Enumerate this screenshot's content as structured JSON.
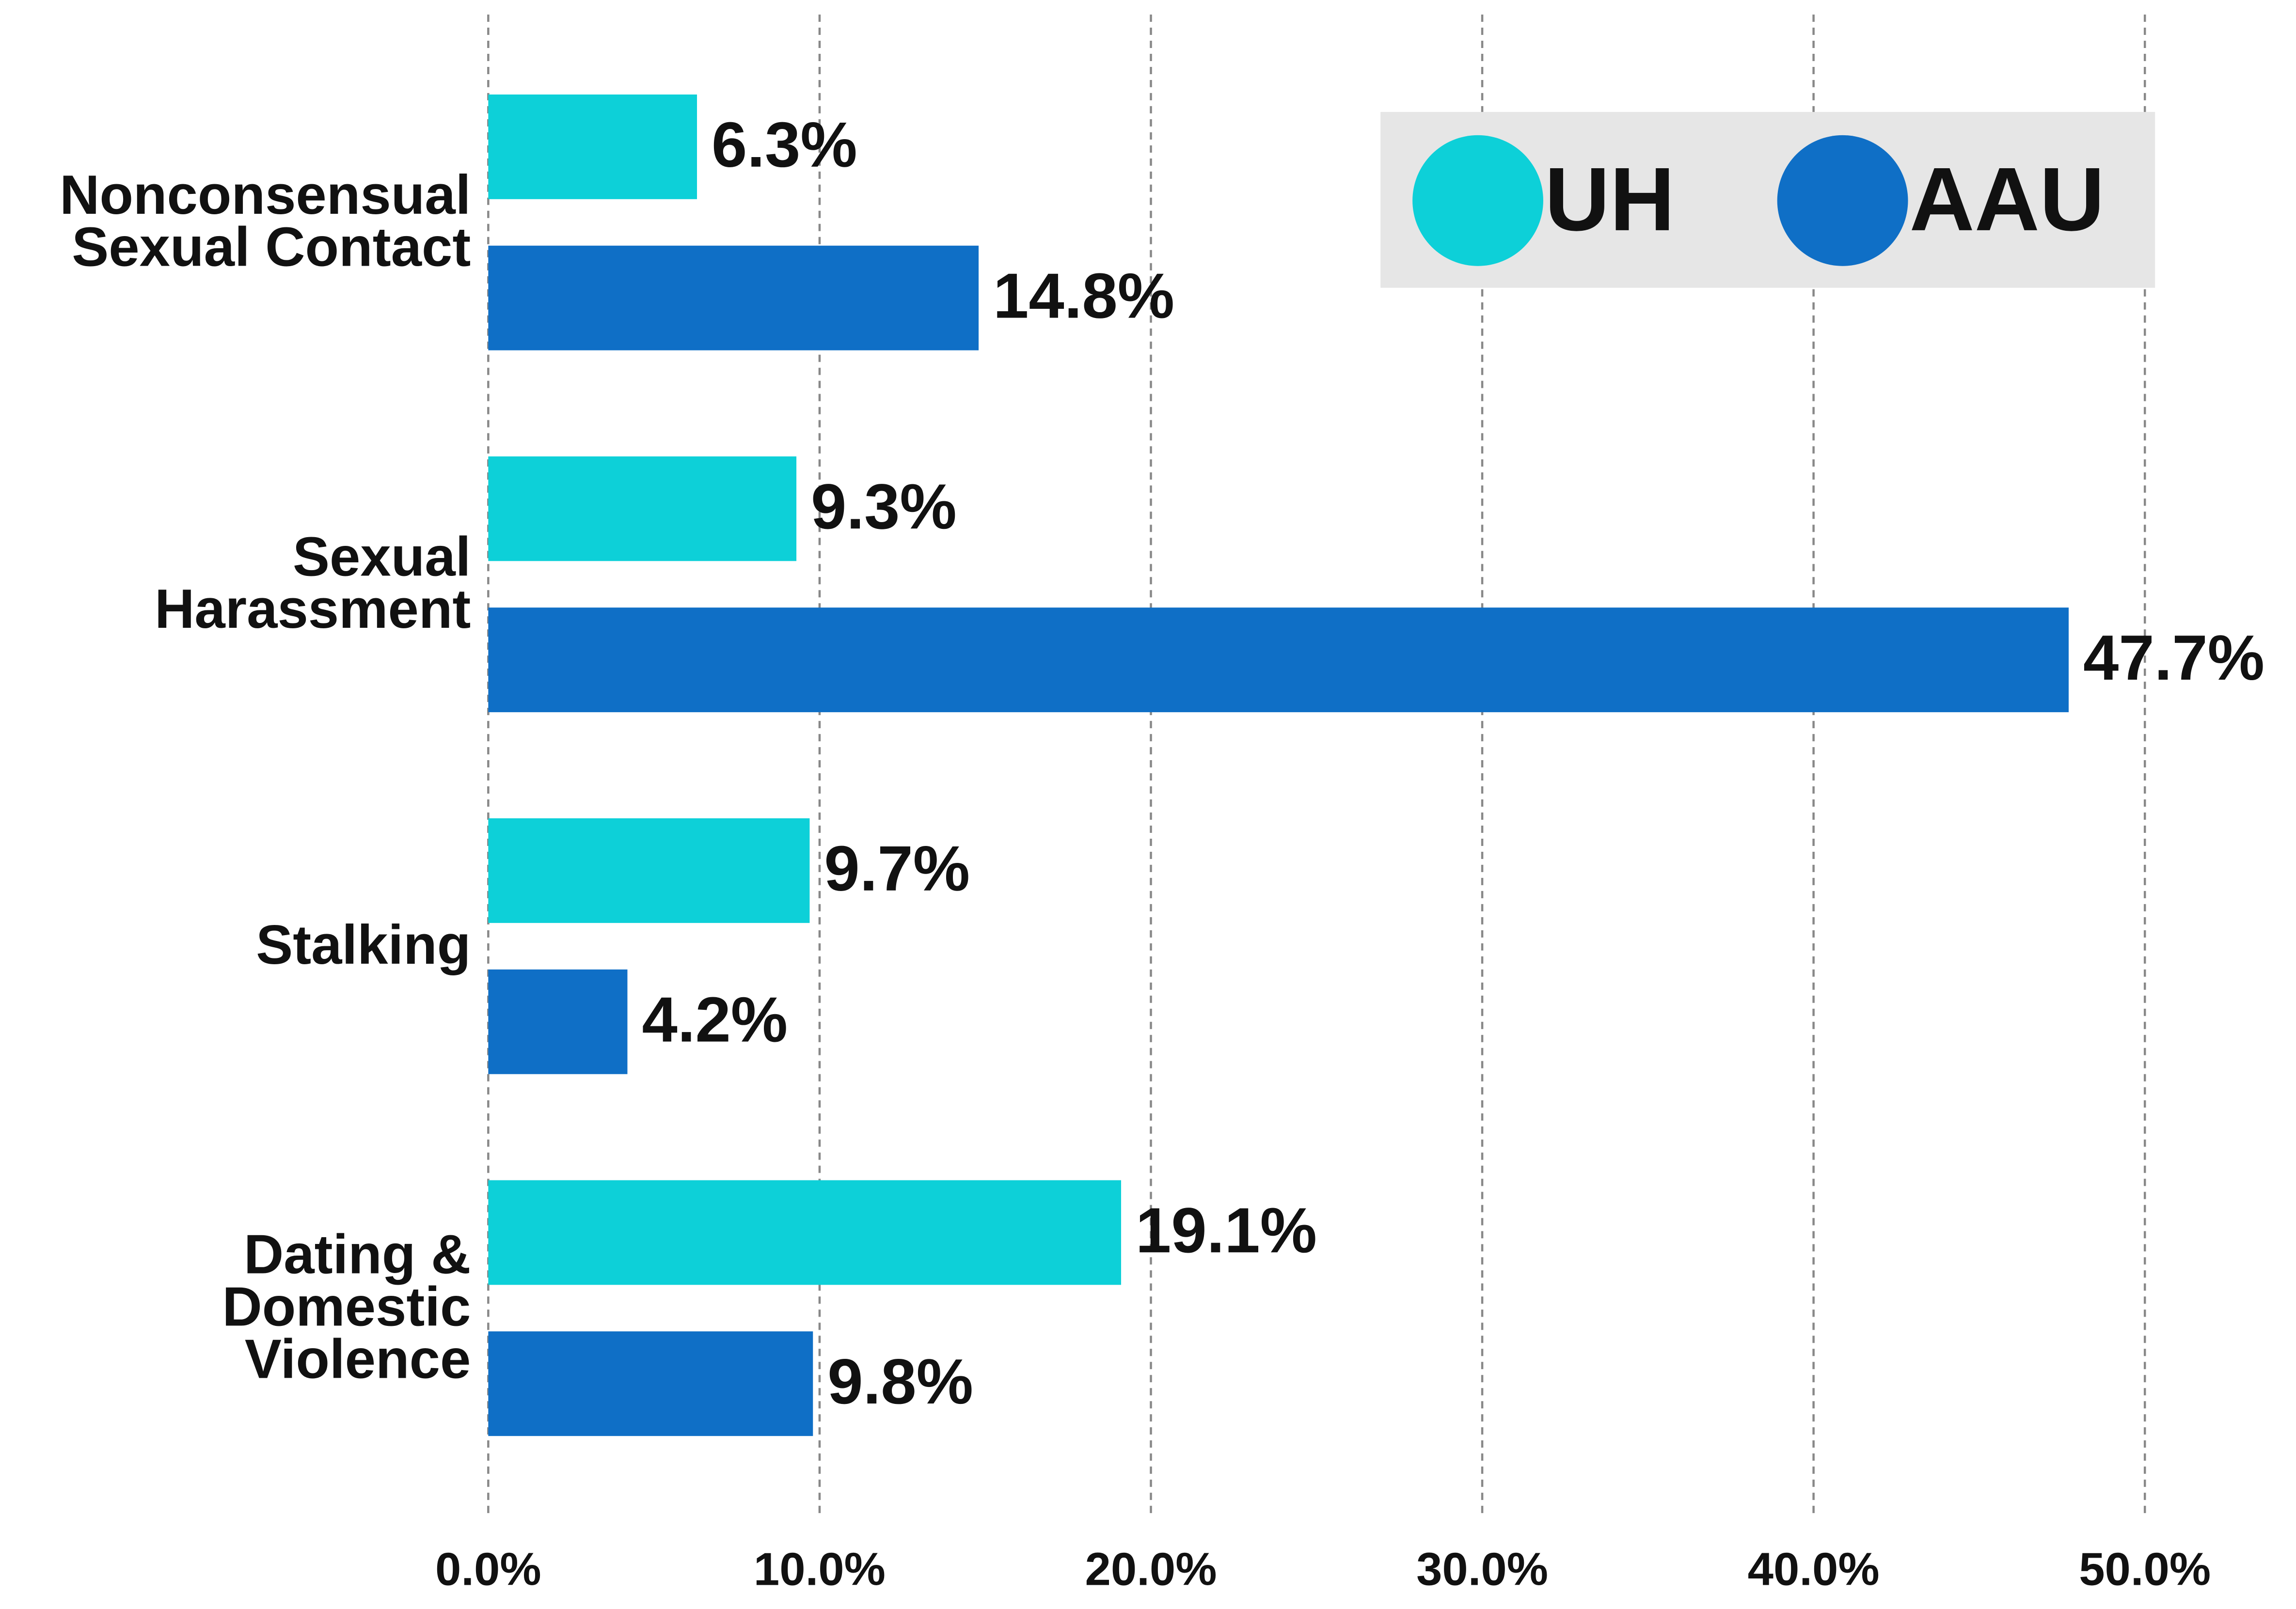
{
  "chart_data": {
    "type": "hbar",
    "categories": [
      "Nonconsensual Sexual Contact",
      "Sexual Harassment",
      "Stalking",
      "Dating & Domestic Violence"
    ],
    "series": [
      {
        "name": "UH",
        "color": "#0dd0d8",
        "values": [
          6.3,
          9.3,
          9.7,
          19.1
        ],
        "value_labels": [
          "6.3%",
          "9.3%",
          "9.7%",
          "19.1%"
        ]
      },
      {
        "name": "AAU",
        "color": "#0f6fc6",
        "values": [
          14.8,
          47.7,
          4.2,
          9.8
        ],
        "value_labels": [
          "14.8%",
          "47.7%",
          "4.2%",
          "9.8%"
        ]
      }
    ],
    "xlim": [
      0,
      50
    ],
    "xticks": [
      {
        "value": 0,
        "label": "0.0%"
      },
      {
        "value": 10,
        "label": "10.0%"
      },
      {
        "value": 20,
        "label": "20.0%"
      },
      {
        "value": 30,
        "label": "30.0%"
      },
      {
        "value": 40,
        "label": "40.0%"
      },
      {
        "value": 50,
        "label": "50.0%"
      }
    ],
    "grid": true,
    "legend": "upper right"
  }
}
